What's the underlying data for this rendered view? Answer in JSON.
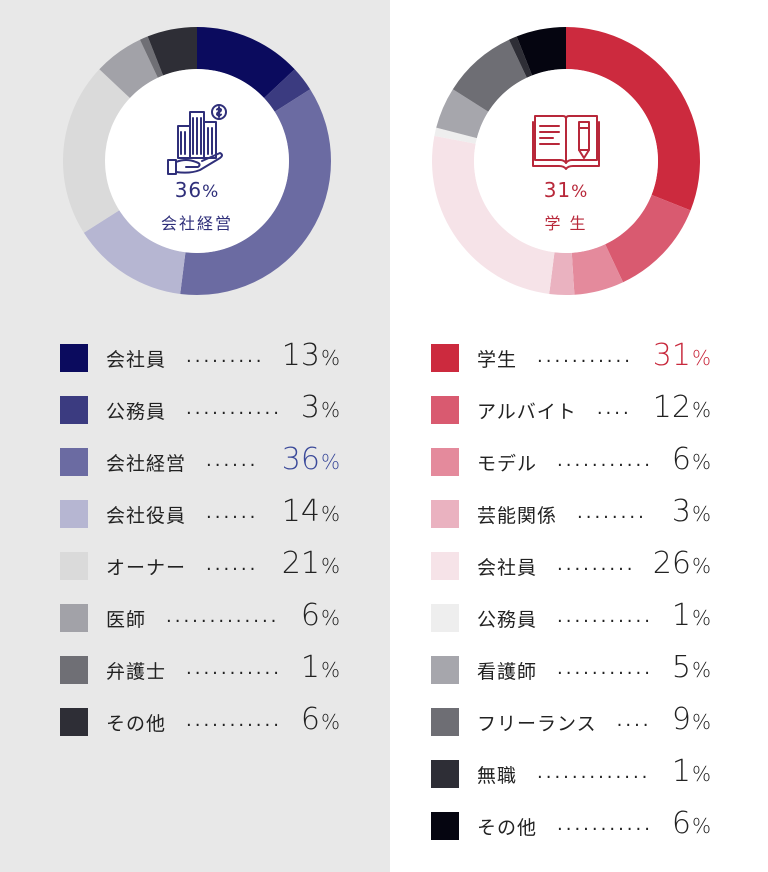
{
  "chart_data": [
    {
      "type": "pie",
      "center_value": "36",
      "center_unit": "%",
      "center_label": "会社経営",
      "highlight_index": 2,
      "highlight_color": "#3b4a9a",
      "categories": [
        "会社員",
        "公務員",
        "会社経営",
        "会社役員",
        "オーナー",
        "医師",
        "弁護士",
        "その他"
      ],
      "values": [
        13,
        3,
        36,
        14,
        21,
        6,
        1,
        6
      ],
      "colors": [
        "#0b0b5e",
        "#3b3b80",
        "#6b6ba2",
        "#b6b6d2",
        "#dadada",
        "#a2a2a8",
        "#6f6f75",
        "#2e2e36"
      ],
      "percent_sign": "%"
    },
    {
      "type": "pie",
      "center_value": "31",
      "center_unit": "%",
      "center_label": "学 生",
      "highlight_index": 0,
      "highlight_color": "#c8283c",
      "categories": [
        "学生",
        "アルバイト",
        "モデル",
        "芸能関係",
        "会社員",
        "公務員",
        "看護師",
        "フリーランス",
        "無職",
        "その他"
      ],
      "values": [
        31,
        12,
        6,
        3,
        26,
        1,
        5,
        9,
        1,
        6
      ],
      "colors": [
        "#cc2a3e",
        "#d95a70",
        "#e48a9c",
        "#eab2c0",
        "#f6e3e8",
        "#eeeeee",
        "#a6a6ac",
        "#6e6e74",
        "#2e2e36",
        "#050510"
      ],
      "percent_sign": "%"
    }
  ],
  "icons": {
    "left": "building-money-hand-icon",
    "right": "open-book-pencil-icon"
  }
}
